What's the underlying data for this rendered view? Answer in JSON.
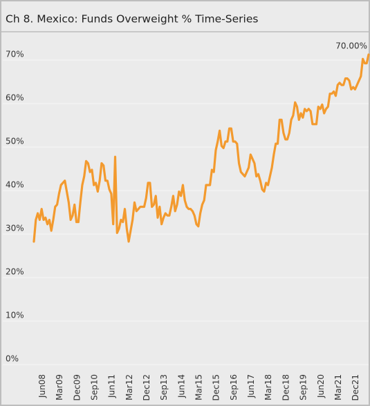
{
  "chart_data": {
    "type": "line",
    "title": "Ch 8. Mexico:  Funds Overweight % Time-Series",
    "categories": [
      null,
      null,
      null,
      "Jun08",
      null,
      null,
      null,
      null,
      null,
      null,
      null,
      null,
      "Mar09",
      null,
      null,
      null,
      null,
      null,
      null,
      null,
      null,
      "Dec09",
      null,
      null,
      null,
      null,
      null,
      null,
      null,
      null,
      "Sep10",
      null,
      null,
      null,
      null,
      null,
      null,
      null,
      null,
      "Jun11",
      null,
      null,
      null,
      null,
      null,
      null,
      null,
      null,
      "Mar12",
      null,
      null,
      null,
      null,
      null,
      null,
      null,
      null,
      "Dec12",
      null,
      null,
      null,
      null,
      null,
      null,
      null,
      null,
      "Sep13",
      null,
      null,
      null,
      null,
      null,
      null,
      null,
      null,
      "Jun14",
      null,
      null,
      null,
      null,
      null,
      null,
      null,
      null,
      "Mar15",
      null,
      null,
      null,
      null,
      null,
      null,
      null,
      null,
      "Dec15",
      null,
      null,
      null,
      null,
      null,
      null,
      null,
      null,
      "Sep16",
      null,
      null,
      null,
      null,
      null,
      null,
      null,
      null,
      "Jun17",
      null,
      null,
      null,
      null,
      null,
      null,
      null,
      null,
      "Mar18",
      null,
      null,
      null,
      null,
      null,
      null,
      null,
      null,
      "Dec18",
      null,
      null,
      null,
      null,
      null,
      null,
      null,
      null,
      "Sep19",
      null,
      null,
      null,
      null,
      null,
      null,
      null,
      null,
      "Jun20",
      null,
      null,
      null,
      null,
      null,
      null,
      null,
      null,
      "Mar21",
      null,
      null,
      null,
      null,
      null,
      null,
      null,
      null,
      "Dec21",
      null,
      null,
      null,
      null,
      null,
      null,
      null,
      null
    ],
    "values": [
      27,
      32,
      33.5,
      32,
      34.5,
      32,
      32.5,
      31,
      32,
      29.5,
      32,
      35,
      35.5,
      38,
      40,
      40.5,
      41,
      38.5,
      36,
      32,
      33,
      35.5,
      31.5,
      31.5,
      36,
      40,
      42,
      45.5,
      45,
      43,
      43.5,
      40,
      40.5,
      38.5,
      41,
      45,
      44.5,
      41,
      41,
      39,
      38,
      31,
      46.5,
      29,
      30,
      32,
      31.5,
      34.5,
      30,
      27,
      29.5,
      32,
      36,
      34,
      34.5,
      35,
      35,
      35,
      37,
      40.5,
      40.5,
      35,
      35.5,
      37.5,
      32.5,
      35,
      31,
      32.5,
      33.5,
      33,
      33,
      35,
      37.5,
      34,
      35.5,
      38.5,
      37.5,
      40,
      36.5,
      35,
      34.5,
      34.5,
      34,
      33,
      31,
      30.5,
      33.5,
      35.5,
      36.5,
      40,
      40,
      40,
      43.5,
      43,
      48,
      50,
      52.5,
      49,
      48.5,
      50,
      50,
      53,
      53,
      50,
      50,
      49.5,
      45,
      43,
      42.5,
      42,
      43,
      44,
      47,
      46,
      45,
      42,
      42.5,
      41,
      39,
      38.5,
      40.5,
      40,
      42,
      44,
      47,
      49.5,
      49.5,
      55,
      55,
      52,
      50.5,
      50.5,
      52,
      55,
      56,
      59,
      58,
      55,
      56.5,
      55.5,
      57.5,
      57,
      57.5,
      57,
      54,
      54,
      54,
      58,
      57.5,
      58.5,
      56.5,
      57.5,
      58,
      61,
      61,
      61.5,
      60.5,
      63,
      63.5,
      63,
      63,
      64.5,
      64.5,
      64,
      62,
      62.5,
      62,
      63,
      64,
      65,
      69,
      68,
      68,
      70
    ],
    "value_labels": [
      null,
      null,
      null,
      null,
      null,
      null,
      null,
      null,
      null,
      null,
      null,
      null,
      null,
      null,
      null,
      null,
      null,
      null,
      null,
      null,
      null,
      null,
      null,
      null,
      null,
      null,
      null,
      null,
      null,
      null,
      null,
      null,
      null,
      null,
      null,
      null,
      null,
      null,
      null,
      null,
      null,
      null,
      null,
      null,
      null,
      null,
      null,
      null,
      null,
      null,
      null,
      null,
      null,
      null,
      null,
      null,
      null,
      null,
      null,
      null,
      null,
      null,
      null,
      null,
      null,
      null,
      null,
      null,
      null,
      null,
      null,
      null,
      null,
      null,
      null,
      null,
      null,
      null,
      null,
      null,
      null,
      null,
      null,
      null,
      null,
      null,
      null,
      null,
      null,
      null,
      null,
      null,
      null,
      null,
      null,
      null,
      null,
      null,
      null,
      null,
      null,
      null,
      null,
      null,
      null,
      null,
      null,
      null,
      null,
      null,
      null,
      null,
      null,
      null,
      null,
      null,
      null,
      null,
      null,
      null,
      null,
      null,
      null,
      null,
      null,
      null,
      null,
      null,
      null,
      null,
      null,
      null,
      null,
      null,
      null,
      null,
      null,
      null,
      null,
      null,
      null,
      null,
      null,
      null,
      null,
      null,
      null,
      null,
      null,
      null,
      null,
      null,
      null,
      null,
      null,
      null,
      null,
      null,
      null,
      null,
      null,
      null,
      null,
      null,
      null,
      null,
      null,
      null,
      null,
      null,
      null,
      null,
      null,
      "70.00%"
    ],
    "color": "#f39a2e",
    "ylim": [
      0,
      75
    ],
    "yticks": [
      {
        "value": 0,
        "label": "0%"
      },
      {
        "value": 10,
        "label": "10%"
      },
      {
        "value": 20,
        "label": "20%"
      },
      {
        "value": 30,
        "label": "30%"
      },
      {
        "value": 40,
        "label": "40%"
      },
      {
        "value": 50,
        "label": "50%"
      },
      {
        "value": 60,
        "label": "60%"
      },
      {
        "value": 70,
        "label": "70%"
      }
    ],
    "grid": true
  }
}
